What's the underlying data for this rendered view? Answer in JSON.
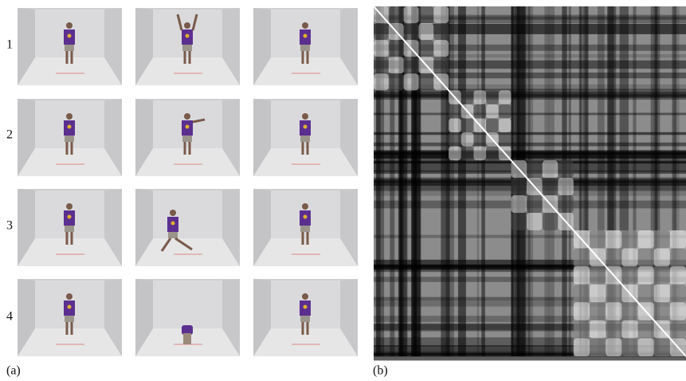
{
  "row_labels": [
    "1",
    "2",
    "3",
    "4"
  ],
  "panel_labels": [
    "(a)",
    "(b)"
  ]
}
